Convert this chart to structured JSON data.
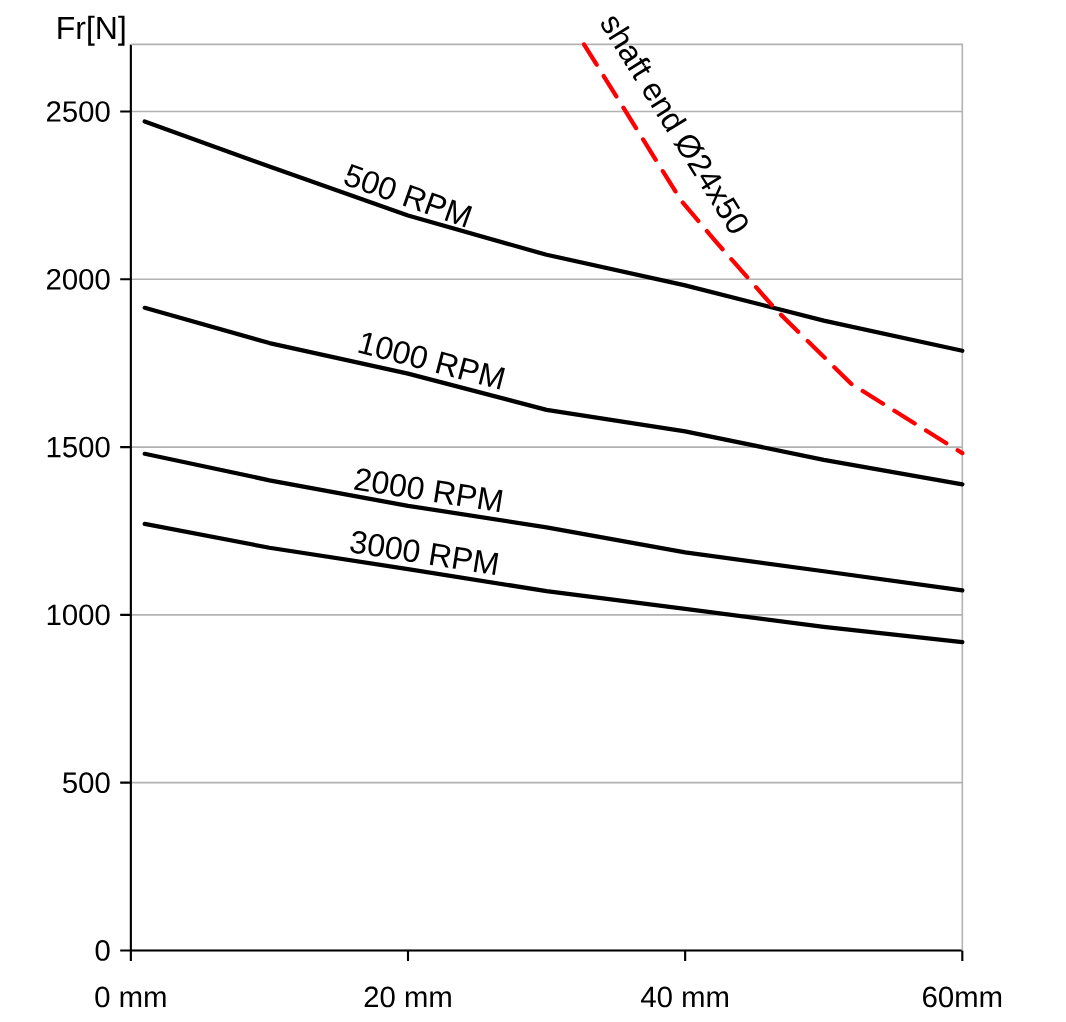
{
  "chart_data": {
    "type": "line",
    "ylabel": "Fr[N]",
    "xlim": [
      0,
      60
    ],
    "ylim": [
      0,
      2700
    ],
    "xticks": [
      {
        "value": 0,
        "label": "0 mm"
      },
      {
        "value": 20,
        "label": "20 mm"
      },
      {
        "value": 40,
        "label": "40 mm"
      },
      {
        "value": 60,
        "label": "60mm"
      }
    ],
    "yticks": [
      0,
      500,
      1000,
      1500,
      2000,
      2500
    ],
    "grid": "y",
    "marker": "none",
    "series": [
      {
        "name": "500 RPM",
        "color": "#000000",
        "line_style": "solid",
        "x": [
          1,
          10,
          20,
          30,
          40,
          50,
          60
        ],
        "values": [
          2470,
          2336,
          2190,
          2073,
          1982,
          1877,
          1787
        ]
      },
      {
        "name": "1000 RPM",
        "color": "#000000",
        "line_style": "solid",
        "x": [
          1,
          10,
          20,
          30,
          40,
          50,
          60
        ],
        "values": [
          1915,
          1810,
          1719,
          1611,
          1547,
          1462,
          1389
        ]
      },
      {
        "name": "2000 RPM",
        "color": "#000000",
        "line_style": "solid",
        "x": [
          1,
          10,
          20,
          30,
          40,
          50,
          60
        ],
        "values": [
          1480,
          1401,
          1325,
          1261,
          1186,
          1130,
          1073
        ]
      },
      {
        "name": "3000 RPM",
        "color": "#000000",
        "line_style": "solid",
        "x": [
          1,
          10,
          20,
          30,
          40,
          50,
          60
        ],
        "values": [
          1271,
          1200,
          1136,
          1071,
          1018,
          964,
          919
        ]
      },
      {
        "name": "shaft end Ø24x50",
        "color": "#ff0000",
        "line_style": "dashed",
        "x": [
          32.7,
          39.7,
          42.2,
          46.6,
          52,
          60
        ],
        "values": [
          2700,
          2235,
          2113,
          1907,
          1688,
          1482
        ]
      }
    ]
  }
}
